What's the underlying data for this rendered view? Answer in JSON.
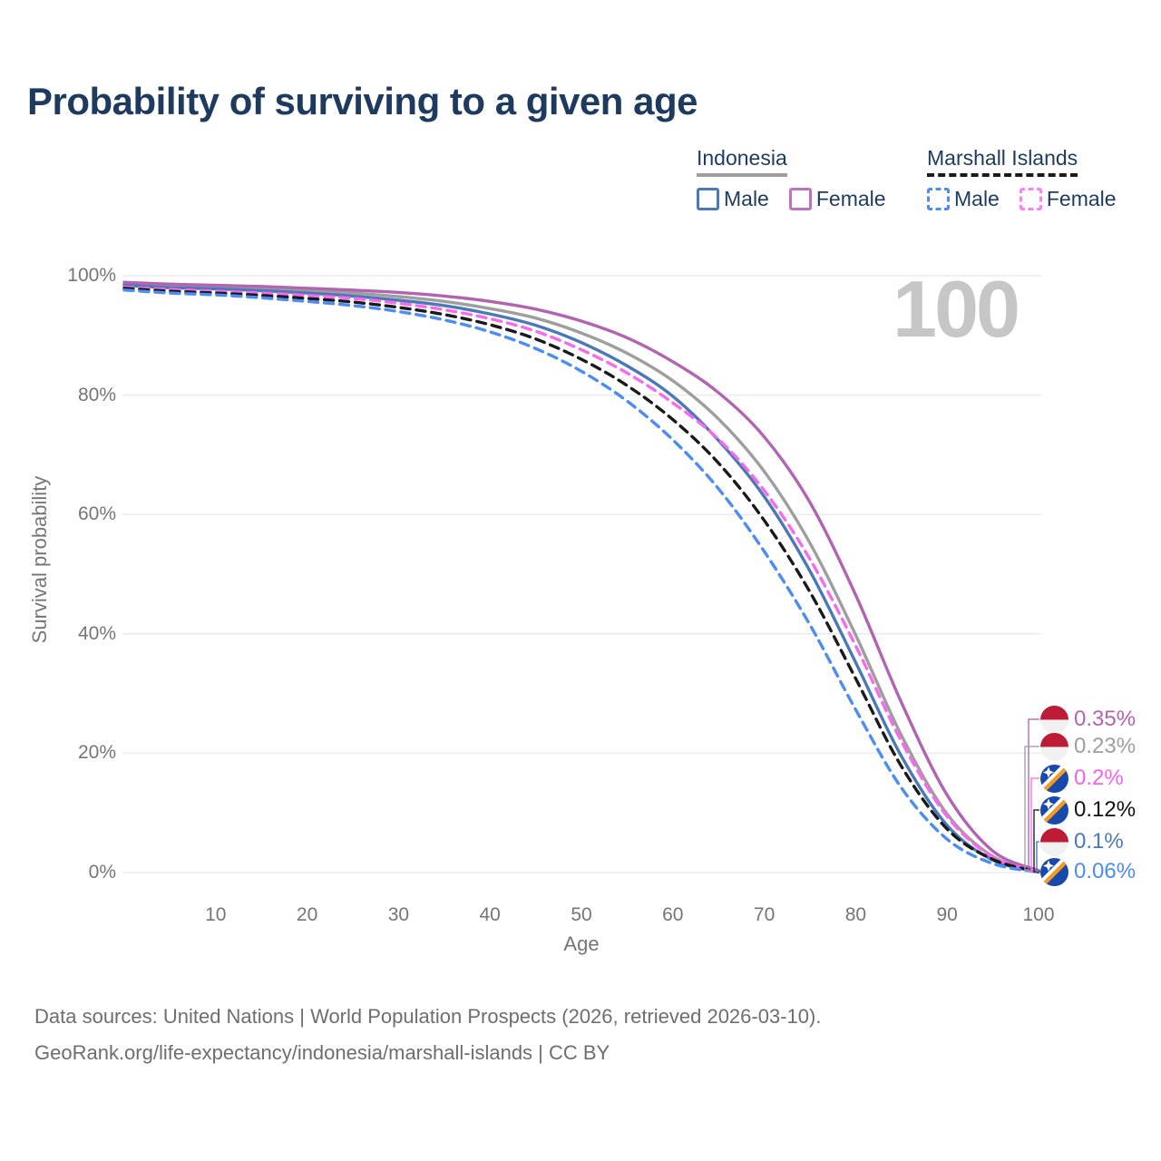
{
  "title": "Probability of surviving to a given age",
  "legend": {
    "groups": [
      {
        "label": "Indonesia",
        "line_style": "solid",
        "line_color": "#9e9e9e",
        "items": [
          {
            "label": "Male",
            "color": "#4a79b8",
            "dash": false
          },
          {
            "label": "Female",
            "color": "#bd72bd",
            "dash": false
          }
        ]
      },
      {
        "label": "Marshall Islands",
        "line_style": "dashed",
        "line_color": "#1a1a1a",
        "items": [
          {
            "label": "Male",
            "color": "#4b8df2",
            "dash": true
          },
          {
            "label": "Female",
            "color": "#fb80f3",
            "dash": true
          }
        ]
      }
    ]
  },
  "footer": {
    "line1": "Data sources: United Nations | World Population Prospects (2026, retrieved 2026-03-10).",
    "line2": "GeoRank.org/life-expectancy/indonesia/marshall-islands | CC BY"
  },
  "chart_data": {
    "type": "line",
    "title": "Probability of surviving to a given age",
    "xlabel": "Age",
    "ylabel": "Survival probability",
    "xlim": [
      0,
      100
    ],
    "ylim": [
      0,
      100
    ],
    "grid": "horizontal",
    "legend_position": "top-right",
    "age_indicator": "100",
    "x": [
      0,
      5,
      10,
      15,
      20,
      25,
      30,
      35,
      40,
      45,
      50,
      55,
      60,
      65,
      70,
      75,
      80,
      85,
      90,
      95,
      100
    ],
    "x_ticks": [
      {
        "v": 10,
        "label": "10"
      },
      {
        "v": 20,
        "label": "20"
      },
      {
        "v": 30,
        "label": "30"
      },
      {
        "v": 40,
        "label": "40"
      },
      {
        "v": 50,
        "label": "50"
      },
      {
        "v": 60,
        "label": "60"
      },
      {
        "v": 70,
        "label": "70"
      },
      {
        "v": 80,
        "label": "80"
      },
      {
        "v": 90,
        "label": "90"
      },
      {
        "v": 100,
        "label": "100"
      }
    ],
    "y_ticks": [
      {
        "v": 0,
        "label": "0%"
      },
      {
        "v": 20,
        "label": "20%"
      },
      {
        "v": 40,
        "label": "40%"
      },
      {
        "v": 60,
        "label": "60%"
      },
      {
        "v": 80,
        "label": "80%"
      },
      {
        "v": 100,
        "label": "100%"
      }
    ],
    "series": [
      {
        "name": "Indonesia - Female",
        "country": "Indonesia",
        "sex": "Female",
        "color": "#b263b2",
        "dash": false,
        "end_label": "0.35%",
        "end_label_color": "#b263b2",
        "values": [
          98.9,
          98.6,
          98.4,
          98.2,
          97.9,
          97.6,
          97.2,
          96.6,
          95.7,
          94.4,
          92.4,
          89.6,
          85.6,
          80.4,
          73.0,
          62.0,
          46.5,
          28.5,
          13.0,
          3.6,
          0.35
        ]
      },
      {
        "name": "Indonesia - Both sexes",
        "country": "Indonesia",
        "sex": "Both",
        "color": "#9e9e9e",
        "dash": false,
        "end_label": "0.23%",
        "end_label_color": "#9e9e9e",
        "values": [
          98.7,
          98.3,
          98.1,
          97.8,
          97.5,
          97.1,
          96.5,
          95.7,
          94.5,
          92.9,
          90.4,
          87.0,
          82.4,
          76.0,
          67.2,
          55.2,
          39.8,
          23.0,
          9.8,
          2.7,
          0.23
        ]
      },
      {
        "name": "Marshall Islands - Female",
        "country": "Marshall Islands",
        "sex": "Female",
        "color": "#f969ef",
        "dash": true,
        "end_label": "0.2%",
        "end_label_color": "#f95ff0",
        "values": [
          98.1,
          97.7,
          97.4,
          97.1,
          96.7,
          96.2,
          95.4,
          94.3,
          92.8,
          90.7,
          87.6,
          83.7,
          78.7,
          72.6,
          64.0,
          52.5,
          38.0,
          22.0,
          9.4,
          2.6,
          0.2
        ]
      },
      {
        "name": "Marshall Islands - Both sexes",
        "country": "Marshall Islands",
        "sex": "Both",
        "color": "#1a1a1a",
        "dash": true,
        "end_label": "0.12%",
        "end_label_color": "#111111",
        "values": [
          97.9,
          97.4,
          97.1,
          96.7,
          96.2,
          95.6,
          94.7,
          93.5,
          91.8,
          89.4,
          86.0,
          81.6,
          75.9,
          68.6,
          59.0,
          47.0,
          32.5,
          17.8,
          7.3,
          2.2,
          0.12
        ]
      },
      {
        "name": "Indonesia - Male",
        "country": "Indonesia",
        "sex": "Male",
        "color": "#4a79b8",
        "dash": false,
        "end_label": "0.1%",
        "end_label_color": "#4a79b8",
        "values": [
          98.4,
          98.0,
          97.8,
          97.5,
          97.1,
          96.6,
          95.9,
          95.0,
          93.6,
          91.7,
          88.8,
          84.9,
          79.8,
          72.4,
          63.0,
          50.5,
          35.2,
          19.5,
          7.9,
          2.1,
          0.1
        ]
      },
      {
        "name": "Marshall Islands - Male",
        "country": "Marshall Islands",
        "sex": "Male",
        "color": "#4b8df2",
        "dash": true,
        "end_label": "0.06%",
        "end_label_color": "#4b8df2",
        "values": [
          97.6,
          97.1,
          96.8,
          96.3,
          95.7,
          95.0,
          94.0,
          92.6,
          90.6,
          87.8,
          84.0,
          79.0,
          72.5,
          64.3,
          53.8,
          41.5,
          27.3,
          14.2,
          5.6,
          1.5,
          0.06
        ]
      }
    ]
  }
}
